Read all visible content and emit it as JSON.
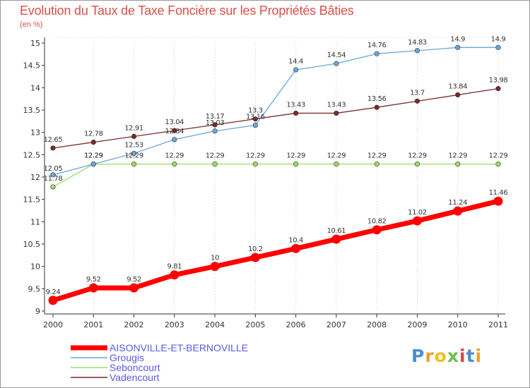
{
  "title": "Evolution du Taux de Taxe Foncière sur les Propriétés Bâties",
  "subtitle": "(en %)",
  "logo": {
    "text": "Proxiti"
  },
  "chart_data": {
    "type": "line",
    "title": "Evolution du Taux de Taxe Foncière sur les Propriétés Bâties",
    "subtitle": "(en %)",
    "xlabel": "",
    "ylabel": "",
    "x": [
      "2000",
      "2001",
      "2002",
      "2003",
      "2004",
      "2005",
      "2006",
      "2007",
      "2008",
      "2009",
      "2010",
      "2011"
    ],
    "ylim": [
      9,
      15
    ],
    "yticks": [
      "9",
      "9.5",
      "10",
      "10.5",
      "11",
      "11.5",
      "12",
      "12.5",
      "13",
      "13.5",
      "14",
      "14.5",
      "15"
    ],
    "grid": "vertical dotted",
    "legend": "bottom-left",
    "series": [
      {
        "name": "AISONVILLE-ET-BERNOVILLE",
        "color": "#ff0000",
        "values": [
          9.24,
          9.52,
          9.52,
          9.81,
          10,
          10.2,
          10.4,
          10.61,
          10.82,
          11.02,
          11.24,
          11.46
        ],
        "labels": [
          "9.24",
          "9.52",
          "9.52",
          "9.81",
          "10",
          "10.2",
          "10.4",
          "10.61",
          "10.82",
          "11.02",
          "11.24",
          "11.46"
        ]
      },
      {
        "name": "Grougis",
        "color": "#6aa6dc",
        "values": [
          12.05,
          12.29,
          12.53,
          12.84,
          13.03,
          13.16,
          14.4,
          14.54,
          14.76,
          14.83,
          14.9,
          14.9
        ],
        "labels": [
          "12.05",
          "12.29",
          "12.53",
          "12.84",
          "13.03",
          "13.16",
          "14.4",
          "14.54",
          "14.76",
          "14.83",
          "14.9",
          "14.9"
        ]
      },
      {
        "name": "Seboncourt",
        "color": "#99dd66",
        "values": [
          11.78,
          12.29,
          12.29,
          12.29,
          12.29,
          12.29,
          12.29,
          12.29,
          12.29,
          12.29,
          12.29,
          12.29
        ],
        "labels": [
          "11.78",
          "12.29",
          "12.29",
          "12.29",
          "12.29",
          "12.29",
          "12.29",
          "12.29",
          "12.29",
          "12.29",
          "12.29",
          "12.29"
        ]
      },
      {
        "name": "Vadencourt",
        "color": "#7a2a2a",
        "values": [
          12.65,
          12.78,
          12.91,
          13.04,
          13.17,
          13.3,
          13.43,
          13.43,
          13.56,
          13.7,
          13.84,
          13.98
        ],
        "labels": [
          "12.65",
          "12.78",
          "12.91",
          "13.04",
          "13.17",
          "13.3",
          "13.43",
          "13.43",
          "13.56",
          "13.7",
          "13.84",
          "13.98"
        ]
      }
    ]
  }
}
